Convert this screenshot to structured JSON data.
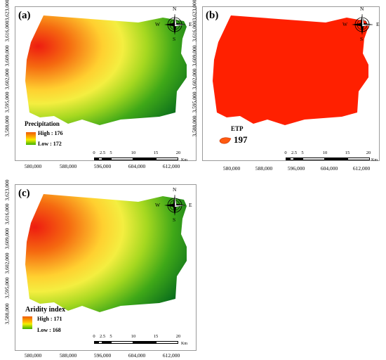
{
  "panels": {
    "a": {
      "label": "(a)",
      "legend_title": "Precipitation",
      "high": "High : 176",
      "low": "Low : 172"
    },
    "b": {
      "label": "(b)",
      "legend_title": "ETP",
      "value": "197"
    },
    "c": {
      "label": "(c)",
      "legend_title": "Aridity index",
      "high": "High : 171",
      "low": "Low : 168"
    }
  },
  "y_ticks": [
    "3,623,000",
    "3,616,000",
    "3,609,000",
    "3,602,000",
    "3,595,000",
    "3,588,000"
  ],
  "x_ticks": [
    "580,000",
    "588,000",
    "596,000",
    "604,000",
    "612,000"
  ],
  "scale": {
    "labels": [
      "0",
      "2.5",
      "5",
      "10",
      "15",
      "20"
    ],
    "unit": "Km"
  },
  "compass": {
    "n": "N",
    "s": "S",
    "e": "E",
    "w": "W"
  },
  "colors": {
    "etp_red": "#ff2000",
    "high": "#e60000",
    "low": "#007a1e"
  }
}
